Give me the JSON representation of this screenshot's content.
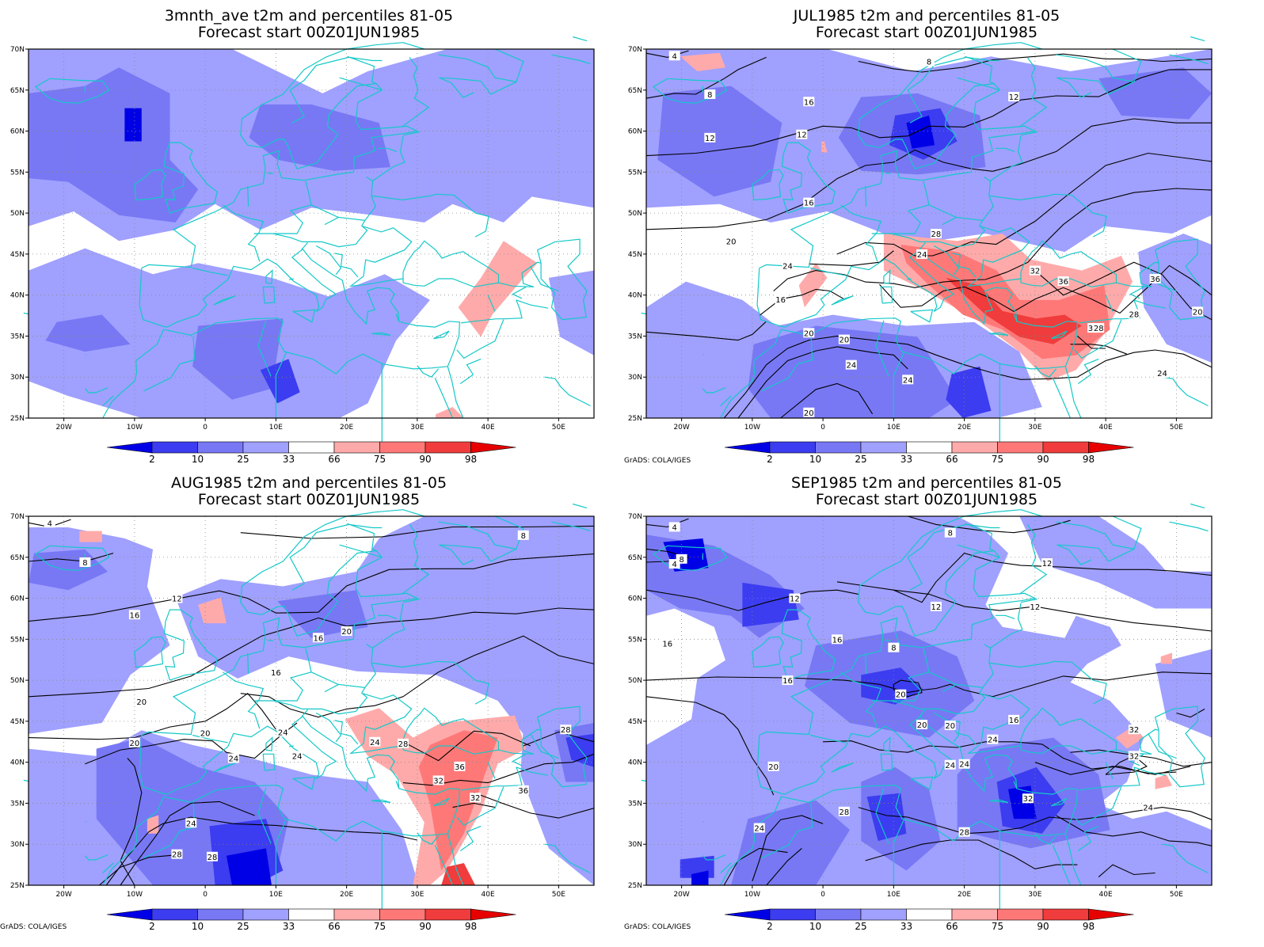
{
  "panels": [
    {
      "id": "p1",
      "title": "3mnth_ave t2m and percentiles 81-05",
      "subtitle": "Forecast start 00Z01JUN1985"
    },
    {
      "id": "p2",
      "title": "JUL1985 t2m and percentiles 81-05",
      "subtitle": "Forecast start 00Z01JUN1985"
    },
    {
      "id": "p3",
      "title": "AUG1985 t2m and percentiles 81-05",
      "subtitle": "Forecast start 00Z01JUN1985"
    },
    {
      "id": "p4",
      "title": "SEP1985 t2m and percentiles 81-05",
      "subtitle": "Forecast start 00Z01JUN1985"
    }
  ],
  "axes": {
    "lat_labels": [
      "70N",
      "65N",
      "60N",
      "55N",
      "50N",
      "45N",
      "40N",
      "35N",
      "30N",
      "25N"
    ],
    "lon_labels": [
      "20W",
      "10W",
      "0",
      "10E",
      "20E",
      "30E",
      "40E",
      "50E"
    ]
  },
  "colorbar": {
    "labels": [
      "2",
      "10",
      "25",
      "33",
      "66",
      "75",
      "90",
      "98"
    ],
    "colors": [
      "#0000e6",
      "#3c3cf0",
      "#7878f5",
      "#a0a0ff",
      "#ffffff",
      "#ffaaaa",
      "#ff7878",
      "#f03c3c",
      "#e60000"
    ]
  },
  "credit": "GrADS: COLA/IGES",
  "contour_labels": {
    "p2": [
      "4",
      "8",
      "12",
      "12",
      "16",
      "8",
      "12",
      "12",
      "16",
      "20",
      "24",
      "16",
      "20",
      "20",
      "24",
      "24",
      "24",
      "20",
      "24",
      "24",
      "28",
      "32",
      "36",
      "32",
      "28",
      "28",
      "36",
      "20"
    ],
    "p3": [
      "4",
      "8",
      "8",
      "12",
      "16",
      "16",
      "16",
      "20",
      "20",
      "20",
      "20",
      "24",
      "24",
      "24",
      "24",
      "28",
      "28",
      "28",
      "28",
      "32",
      "32",
      "36",
      "36",
      "24",
      "28"
    ],
    "p4": [
      "4",
      "4",
      "8",
      "8",
      "8",
      "12",
      "12",
      "12",
      "12",
      "16",
      "16",
      "16",
      "20",
      "20",
      "20",
      "20",
      "16",
      "24",
      "24",
      "24",
      "24",
      "28",
      "28",
      "32",
      "32",
      "32",
      "24"
    ]
  },
  "colors": {
    "coast": "#14c8c8",
    "contour": "#000000",
    "grid": "#888888"
  }
}
